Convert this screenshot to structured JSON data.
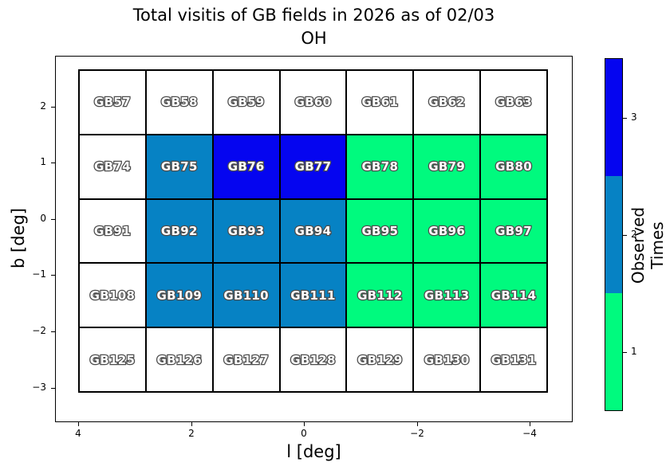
{
  "title": {
    "line1": "Total visitis of GB fields in 2026 as of 02/03",
    "line2": "OH"
  },
  "axes": {
    "xlabel": "l [deg]",
    "ylabel": "b [deg]",
    "x_ticks": [
      "4",
      "2",
      "0",
      "−2",
      "−4"
    ],
    "y_ticks": [
      "2",
      "1",
      "0",
      "−1",
      "−2",
      "−3"
    ]
  },
  "colorbar": {
    "label": "Observed Times",
    "ticks_top_to_bottom": [
      "3",
      "2",
      "1"
    ],
    "segment_colors_top_to_bottom": [
      "#0505F0",
      "#0682C4",
      "#00FA7E"
    ]
  },
  "chart_data": {
    "type": "heatmap",
    "title": "Total visitis of GB fields in 2026 as of 02/03",
    "subtitle": "OH",
    "xlabel": "l [deg]",
    "ylabel": "b [deg]",
    "x_tick_labels": [
      4,
      2,
      0,
      -2,
      -4
    ],
    "y_tick_labels": [
      2,
      1,
      0,
      -1,
      -2,
      -3
    ],
    "x_axis_inverted": true,
    "xlim": [
      4.4,
      -4.7
    ],
    "ylim": [
      -3.6,
      2.9
    ],
    "grid_shape": {
      "rows": 5,
      "cols": 7
    },
    "colorbar_label": "Observed Times",
    "colorbar_ticks": [
      1,
      2,
      3
    ],
    "value_colors": {
      "0": "#FFFFFF",
      "1": "#00FA7E",
      "2": "#0682C4",
      "3": "#0505F0"
    },
    "rows": [
      {
        "fields": [
          "GB57",
          "GB58",
          "GB59",
          "GB60",
          "GB61",
          "GB62",
          "GB63"
        ],
        "observed_times": [
          0,
          0,
          0,
          0,
          0,
          0,
          0
        ]
      },
      {
        "fields": [
          "GB74",
          "GB75",
          "GB76",
          "GB77",
          "GB78",
          "GB79",
          "GB80"
        ],
        "observed_times": [
          0,
          2,
          3,
          3,
          1,
          1,
          1
        ]
      },
      {
        "fields": [
          "GB91",
          "GB92",
          "GB93",
          "GB94",
          "GB95",
          "GB96",
          "GB97"
        ],
        "observed_times": [
          0,
          2,
          2,
          2,
          1,
          1,
          1
        ]
      },
      {
        "fields": [
          "GB108",
          "GB109",
          "GB110",
          "GB111",
          "GB112",
          "GB113",
          "GB114"
        ],
        "observed_times": [
          0,
          2,
          2,
          2,
          1,
          1,
          1
        ]
      },
      {
        "fields": [
          "GB125",
          "GB126",
          "GB127",
          "GB128",
          "GB129",
          "GB130",
          "GB131"
        ],
        "observed_times": [
          0,
          0,
          0,
          0,
          0,
          0,
          0
        ]
      }
    ]
  }
}
